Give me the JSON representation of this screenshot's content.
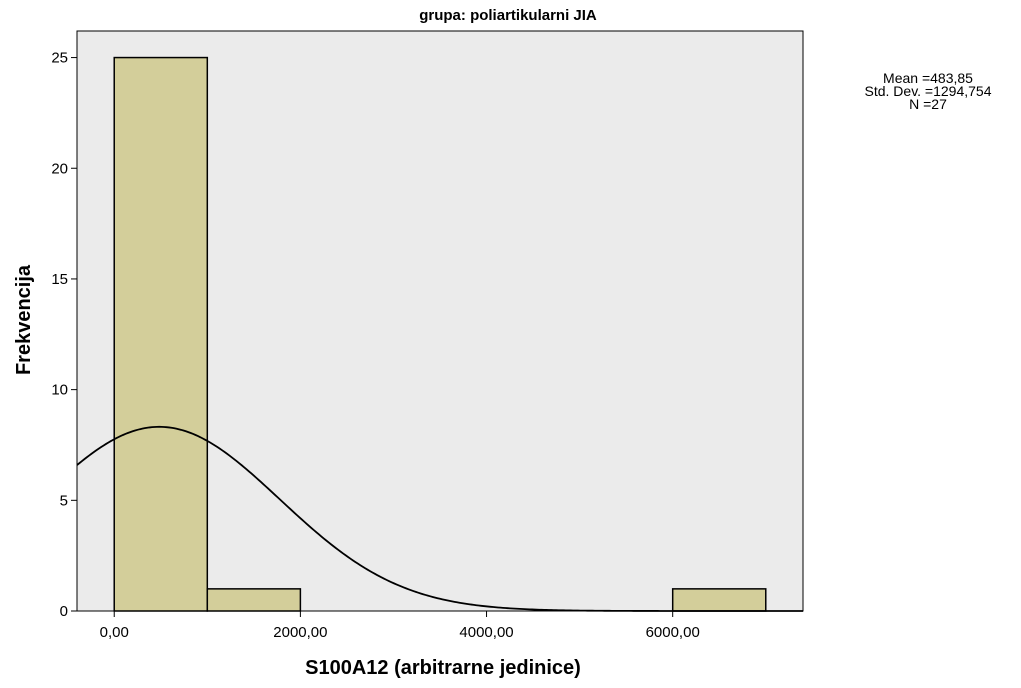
{
  "chart_data": {
    "type": "bar",
    "title": "grupa: poliartikularni JIA",
    "xlabel": "S100A12 (arbitrarne jedinice)",
    "ylabel": "Frekvencija",
    "xlim": [
      -400,
      7400
    ],
    "ylim": [
      0,
      26.2
    ],
    "x_ticks": [
      0,
      2000,
      4000,
      6000
    ],
    "x_tick_labels": [
      "0,00",
      "2000,00",
      "4000,00",
      "6000,00"
    ],
    "y_ticks": [
      0,
      5,
      10,
      15,
      20,
      25
    ],
    "y_tick_labels": [
      "0",
      "5",
      "10",
      "15",
      "20",
      "25"
    ],
    "bin_width": 1000,
    "bins": [
      {
        "x_start": 0,
        "x_end": 1000,
        "count": 25
      },
      {
        "x_start": 1000,
        "x_end": 2000,
        "count": 1
      },
      {
        "x_start": 6000,
        "x_end": 7000,
        "count": 1
      }
    ],
    "normal_curve": {
      "mean": 483.85,
      "std_dev": 1294.754,
      "n": 27
    },
    "stats_text": {
      "mean": "Mean =483,85",
      "std_dev": "Std. Dev. =1294,754",
      "n": "N =27"
    },
    "grid": false,
    "legend": "none",
    "colors": {
      "plot_background": "#ebebeb",
      "bar_fill": "#d3ce9a",
      "bar_stroke": "#000000",
      "curve": "#000000"
    }
  }
}
